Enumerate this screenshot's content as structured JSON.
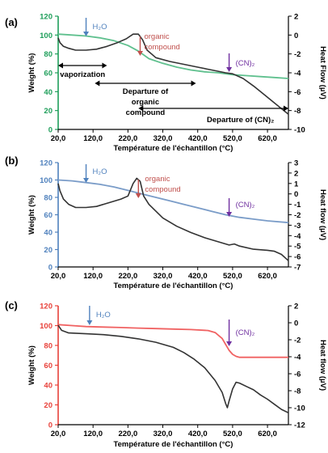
{
  "chart_data": [
    {
      "panel_label": "(a)",
      "type": "line",
      "xlabel": "Température de l'échantillon (°C)",
      "ylabel": "Weight (%)",
      "y2label": "Heat Flow (µV)",
      "xlim": [
        20,
        680
      ],
      "ylim": [
        0,
        120
      ],
      "y2lim": [
        -10,
        2
      ],
      "x_ticks": [
        20,
        120,
        220,
        320,
        420,
        520,
        620
      ],
      "x_tick_labels": [
        "20,0",
        "120,0",
        "220,0",
        "320,0",
        "420,0",
        "520,0",
        "620,0"
      ],
      "y_ticks": [
        0,
        20,
        40,
        60,
        80,
        100,
        120
      ],
      "y2_ticks": [
        -10,
        -8,
        -6,
        -4,
        -2,
        0,
        2
      ],
      "left_axis_color": "#1e9e5a",
      "series": [
        {
          "role": "weight",
          "axis": "left",
          "color": "#5fc08e",
          "x": [
            20,
            60,
            100,
            140,
            180,
            220,
            250,
            280,
            320,
            360,
            400,
            440,
            480,
            520,
            560,
            600,
            640,
            680
          ],
          "values": [
            101,
            100,
            99,
            97,
            94,
            89,
            83,
            75,
            70,
            66,
            63,
            61,
            60,
            58,
            57,
            56,
            55,
            54
          ]
        },
        {
          "role": "heat_flow",
          "axis": "right",
          "color": "#333333",
          "x": [
            20,
            25,
            35,
            50,
            70,
            100,
            130,
            160,
            190,
            215,
            235,
            250,
            262,
            275,
            300,
            340,
            380,
            420,
            460,
            500,
            520,
            550,
            580,
            610,
            640,
            680
          ],
          "values": [
            -0.3,
            -0.8,
            -1.2,
            -1.4,
            -1.6,
            -1.6,
            -1.5,
            -1.2,
            -0.8,
            -0.4,
            0.1,
            0.1,
            -0.5,
            -1.6,
            -2.4,
            -2.8,
            -3.1,
            -3.4,
            -3.7,
            -4.0,
            -4.1,
            -4.6,
            -5.4,
            -6.3,
            -7.2,
            -8.4
          ]
        }
      ],
      "annotations": [
        {
          "text": "H₂O",
          "x": 100,
          "color": "#4f81bd",
          "arrow": true
        },
        {
          "text": "organic",
          "x": 255,
          "color": "#c0504d",
          "arrow": true
        },
        {
          "text": "compound",
          "x": 255,
          "color": "#c0504d"
        },
        {
          "text": "(CN)₂",
          "x": 510,
          "color": "#7030a0",
          "arrow": true
        },
        {
          "text": "vaporization",
          "range": [
            20,
            160
          ],
          "color": "#000000"
        },
        {
          "text": "Departure of",
          "range": [
            125,
            415
          ],
          "color": "#000000"
        },
        {
          "text": "organic",
          "range": [
            125,
            415
          ],
          "color": "#000000"
        },
        {
          "text": "compound",
          "range": [
            125,
            415
          ],
          "color": "#000000"
        },
        {
          "text": "Departure of (CN)₂",
          "range": [
            250,
            680
          ],
          "color": "#000000"
        }
      ]
    },
    {
      "panel_label": "(b)",
      "type": "line",
      "xlabel": "Température de l'échantillon (°C)",
      "ylabel": "Weight (%)",
      "y2label": "Heat flow (µV)",
      "xlim": [
        20,
        680
      ],
      "ylim": [
        0,
        120
      ],
      "y2lim": [
        -7,
        3
      ],
      "x_ticks": [
        20,
        120,
        220,
        320,
        420,
        520,
        620
      ],
      "x_tick_labels": [
        "20,0",
        "120,0",
        "220,0",
        "320,0",
        "420,0",
        "520,0",
        "620,0"
      ],
      "y_ticks": [
        0,
        20,
        40,
        60,
        80,
        100,
        120
      ],
      "y2_ticks": [
        -7,
        -6,
        -5,
        -4,
        -3,
        -2,
        -1,
        0,
        1,
        2,
        3
      ],
      "left_axis_color": "#4f81bd",
      "series": [
        {
          "role": "weight",
          "axis": "left",
          "color": "#7a9cc8",
          "x": [
            20,
            60,
            100,
            140,
            180,
            220,
            260,
            300,
            340,
            380,
            420,
            460,
            500,
            540,
            580,
            620,
            680
          ],
          "values": [
            100,
            99,
            97,
            95,
            92,
            88,
            84,
            80,
            76,
            72,
            68,
            64,
            60,
            57,
            55,
            53,
            51
          ]
        },
        {
          "role": "heat_flow",
          "axis": "right",
          "color": "#333333",
          "x": [
            20,
            25,
            35,
            50,
            70,
            100,
            130,
            170,
            200,
            220,
            235,
            245,
            255,
            265,
            280,
            320,
            360,
            400,
            440,
            480,
            510,
            525,
            540,
            580,
            620,
            640,
            660,
            680
          ],
          "values": [
            1.0,
            0.3,
            -0.5,
            -1.0,
            -1.3,
            -1.3,
            -1.2,
            -0.8,
            -0.5,
            -0.2,
            1.0,
            1.5,
            1.2,
            -0.2,
            -1.0,
            -2.3,
            -3.1,
            -3.7,
            -4.2,
            -4.6,
            -4.9,
            -4.8,
            -5.0,
            -5.3,
            -5.4,
            -5.5,
            -5.8,
            -6.4
          ]
        }
      ],
      "annotations": [
        {
          "text": "H₂O",
          "x": 100,
          "color": "#4f81bd",
          "arrow": true
        },
        {
          "text": "organic",
          "x": 250,
          "color": "#c0504d",
          "arrow": true
        },
        {
          "text": "compound",
          "x": 250,
          "color": "#c0504d"
        },
        {
          "text": "(CN)₂",
          "x": 510,
          "color": "#7030a0",
          "arrow": true
        }
      ]
    },
    {
      "panel_label": "(c)",
      "type": "line",
      "xlabel": "Température de l'échantillon (°C)",
      "ylabel": "Weight (%)",
      "y2label": "Heat flow (µV)",
      "xlim": [
        20,
        680
      ],
      "ylim": [
        0,
        120
      ],
      "y2lim": [
        -12,
        2
      ],
      "x_ticks": [
        20,
        120,
        220,
        320,
        420,
        520,
        620
      ],
      "x_tick_labels": [
        "20,0",
        "120,0",
        "220,0",
        "320,0",
        "420,0",
        "520,0",
        "620,0"
      ],
      "y_ticks": [
        0,
        20,
        40,
        60,
        80,
        100,
        120
      ],
      "y2_ticks": [
        -12,
        -10,
        -8,
        -6,
        -4,
        -2,
        0,
        2
      ],
      "left_axis_color": "#e8413a",
      "series": [
        {
          "role": "weight",
          "axis": "left",
          "color": "#f06262",
          "x": [
            20,
            60,
            100,
            150,
            200,
            250,
            300,
            350,
            400,
            450,
            470,
            490,
            500,
            510,
            520,
            530,
            540,
            580,
            620,
            680
          ],
          "values": [
            101,
            100,
            99,
            98.5,
            98,
            97.5,
            97,
            96.5,
            96,
            95,
            93,
            87,
            81,
            75,
            71,
            69,
            68,
            68,
            68,
            68
          ]
        },
        {
          "role": "heat_flow",
          "axis": "right",
          "color": "#333333",
          "x": [
            20,
            30,
            50,
            100,
            150,
            200,
            250,
            300,
            350,
            380,
            410,
            440,
            470,
            490,
            500,
            505,
            510,
            520,
            530,
            540,
            560,
            580,
            600,
            620,
            640,
            660,
            680
          ],
          "values": [
            -0.3,
            -0.9,
            -1.2,
            -1.3,
            -1.4,
            -1.6,
            -1.9,
            -2.3,
            -2.9,
            -3.5,
            -4.3,
            -5.3,
            -6.8,
            -8.2,
            -9.5,
            -10.0,
            -9.2,
            -7.8,
            -7.0,
            -7.1,
            -7.5,
            -7.9,
            -8.5,
            -9.0,
            -9.6,
            -10.2,
            -10.6
          ]
        }
      ],
      "annotations": [
        {
          "text": "H₂O",
          "x": 110,
          "color": "#4f81bd",
          "arrow": true
        },
        {
          "text": "(CN)₂",
          "x": 510,
          "color": "#7030a0",
          "arrow": true
        }
      ]
    }
  ]
}
